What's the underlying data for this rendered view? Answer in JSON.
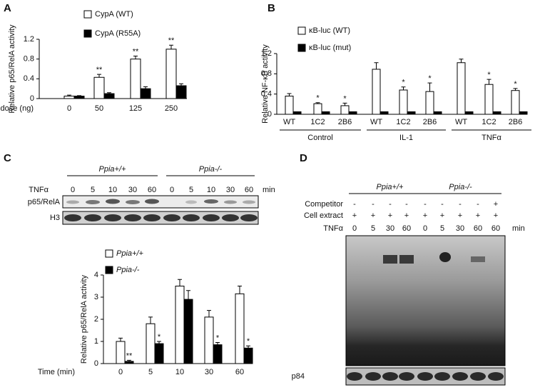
{
  "chart_data": [
    {
      "panel": "A",
      "type": "bar",
      "y_label": "Relative p65/RelA activity",
      "x_label": "dose (ng)",
      "categories": [
        "0",
        "50",
        "125",
        "250"
      ],
      "series": [
        {
          "name": "CypA (WT)",
          "color": "#ffffff",
          "values": [
            0.05,
            0.43,
            0.8,
            1.0
          ],
          "errors": [
            0.02,
            0.06,
            0.06,
            0.08
          ],
          "significance": [
            null,
            "**",
            "**",
            "**"
          ]
        },
        {
          "name": "CypA (R55A)",
          "color": "#000000",
          "values": [
            0.05,
            0.1,
            0.2,
            0.26
          ],
          "errors": [
            0.01,
            0.02,
            0.04,
            0.04
          ]
        }
      ],
      "ylim": [
        0,
        1.2
      ],
      "yticks": [
        0,
        0.4,
        0.8,
        1.2
      ]
    },
    {
      "panel": "B",
      "type": "bar",
      "y_label": "Relative NF-κB activity",
      "categories": [
        "WT",
        "1C2",
        "2B6",
        "WT",
        "1C2",
        "2B6",
        "WT",
        "1C2",
        "2B6"
      ],
      "groups": [
        "Control",
        "IL-1",
        "TNFα"
      ],
      "series": [
        {
          "name": "κB-luc (WT)",
          "color": "#ffffff",
          "values": [
            0.36,
            0.21,
            0.17,
            0.89,
            0.48,
            0.45,
            1.02,
            0.59,
            0.47
          ],
          "errors": [
            0.05,
            0.02,
            0.05,
            0.13,
            0.06,
            0.17,
            0.07,
            0.1,
            0.04
          ],
          "significance": [
            null,
            "*",
            "*",
            null,
            "*",
            "*",
            null,
            "*",
            "*"
          ]
        },
        {
          "name": "κB-luc (mut)",
          "color": "#000000",
          "values": [
            0.05,
            0.05,
            0.05,
            0.05,
            0.05,
            0.05,
            0.05,
            0.05,
            0.05
          ]
        }
      ],
      "ylim": [
        0,
        1.2
      ],
      "yticks": [
        0,
        0.4,
        0.8,
        1.2
      ]
    },
    {
      "panel": "C",
      "type": "bar",
      "y_label": "Relative p65/RelA activity",
      "x_label": "Time (min)",
      "categories": [
        "0",
        "5",
        "10",
        "30",
        "60"
      ],
      "series": [
        {
          "name": "Ppia+/+",
          "color": "#ffffff",
          "values": [
            1.0,
            1.8,
            3.5,
            2.1,
            3.15
          ],
          "errors": [
            0.15,
            0.3,
            0.3,
            0.3,
            0.35
          ]
        },
        {
          "name": "Ppia-/-",
          "color": "#000000",
          "values": [
            0.1,
            0.9,
            2.9,
            0.85,
            0.7
          ],
          "errors": [
            0.05,
            0.1,
            0.4,
            0.1,
            0.1
          ],
          "significance": [
            "**",
            "*",
            null,
            "*",
            "*"
          ]
        }
      ],
      "ylim": [
        0,
        4
      ],
      "yticks": [
        0,
        1,
        2,
        3,
        4
      ]
    }
  ],
  "blots": [
    {
      "groups": [
        "Ppia+/+",
        "Ppia-/-"
      ],
      "rows": [
        {
          "label": "TNFα",
          "values": [
            0,
            5,
            10,
            30,
            60,
            0,
            5,
            10,
            30,
            60
          ]
        }
      ],
      "unit": "min",
      "bands": [
        "p65/RelA",
        "H3"
      ]
    },
    {
      "panel": "D",
      "groups": [
        "Ppia+/+",
        "Ppia-/-"
      ],
      "rows": [
        {
          "label": "Competitor",
          "values": [
            "-",
            "-",
            "-",
            "-",
            "-",
            "-",
            "-",
            "-",
            "+"
          ]
        },
        {
          "label": "Cell extract",
          "values": [
            "+",
            "+",
            "+",
            "+",
            "+",
            "+",
            "+",
            "+",
            "+"
          ]
        },
        {
          "label": "TNFα",
          "values": [
            0,
            5,
            30,
            60,
            0,
            5,
            30,
            60,
            60
          ]
        }
      ],
      "unit": "min",
      "bands": [
        "p84"
      ]
    }
  ]
}
